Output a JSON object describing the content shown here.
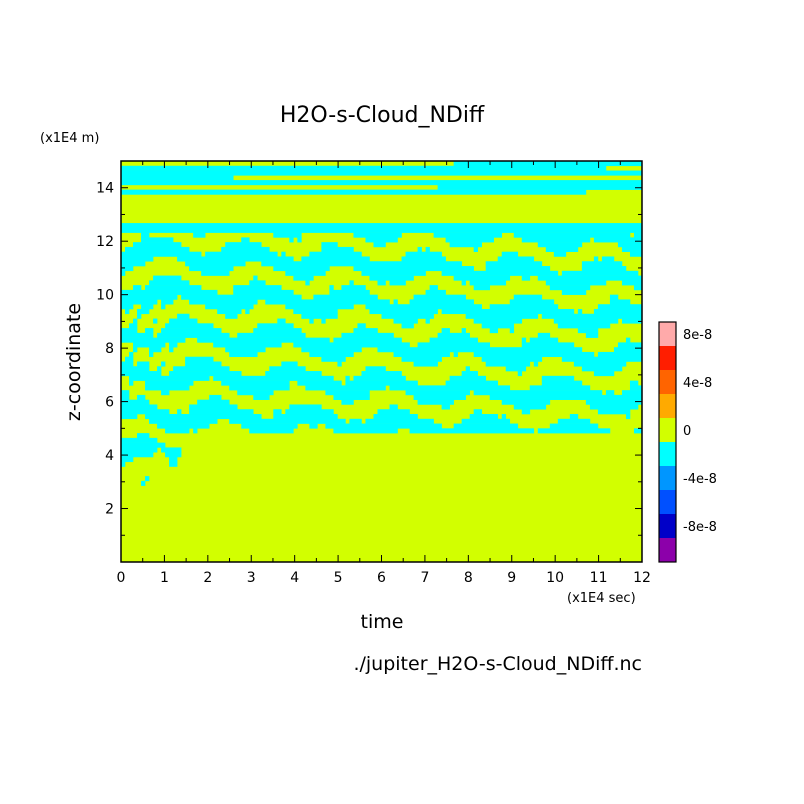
{
  "chart_data": {
    "type": "heatmap",
    "title": "H2O-s-Cloud_NDiff",
    "xlabel": "time",
    "ylabel": "z-coordinate",
    "x_unit": "(x1E4 sec)",
    "y_unit": "(x1E4 m)",
    "xlim": [
      0,
      12
    ],
    "ylim": [
      0,
      15
    ],
    "x_ticks": [
      "0",
      "1",
      "2",
      "3",
      "4",
      "5",
      "6",
      "7",
      "8",
      "9",
      "10",
      "11",
      "12"
    ],
    "y_ticks": [
      "2",
      "4",
      "6",
      "8",
      "10",
      "12",
      "14"
    ],
    "colorbar": {
      "labels": [
        "8e-8",
        "4e-8",
        "0",
        "-4e-8",
        "-8e-8"
      ],
      "label_values": [
        8e-08,
        4e-08,
        0,
        -4e-08,
        -8e-08
      ],
      "levels": [
        {
          "range": [
            8e-08,
            1e-07
          ],
          "color": "#ffaaaa"
        },
        {
          "range": [
            6e-08,
            8e-08
          ],
          "color": "#ff1e00"
        },
        {
          "range": [
            4e-08,
            6e-08
          ],
          "color": "#ff6400"
        },
        {
          "range": [
            2e-08,
            4e-08
          ],
          "color": "#ffaa00"
        },
        {
          "range": [
            0,
            2e-08
          ],
          "color": "#d2ff00"
        },
        {
          "range": [
            -2e-08,
            0
          ],
          "color": "#00ffff"
        },
        {
          "range": [
            -4e-08,
            -2e-08
          ],
          "color": "#0096ff"
        },
        {
          "range": [
            -6e-08,
            -4e-08
          ],
          "color": "#0050ff"
        },
        {
          "range": [
            -8e-08,
            -6e-08
          ],
          "color": "#0000c8"
        },
        {
          "range": [
            -1e-07,
            -8e-08
          ],
          "color": "#8c00aa"
        }
      ]
    },
    "regions": {
      "lower_uniform_zero_layer_top": 2.9,
      "mixed_layer_base_late": 4.9,
      "mixed_layer_top": 12.4,
      "upper_uniform_band": [
        12.7,
        13.8
      ]
    }
  },
  "footer": {
    "file_path": "./jupiter_H2O-s-Cloud_NDiff.nc"
  }
}
